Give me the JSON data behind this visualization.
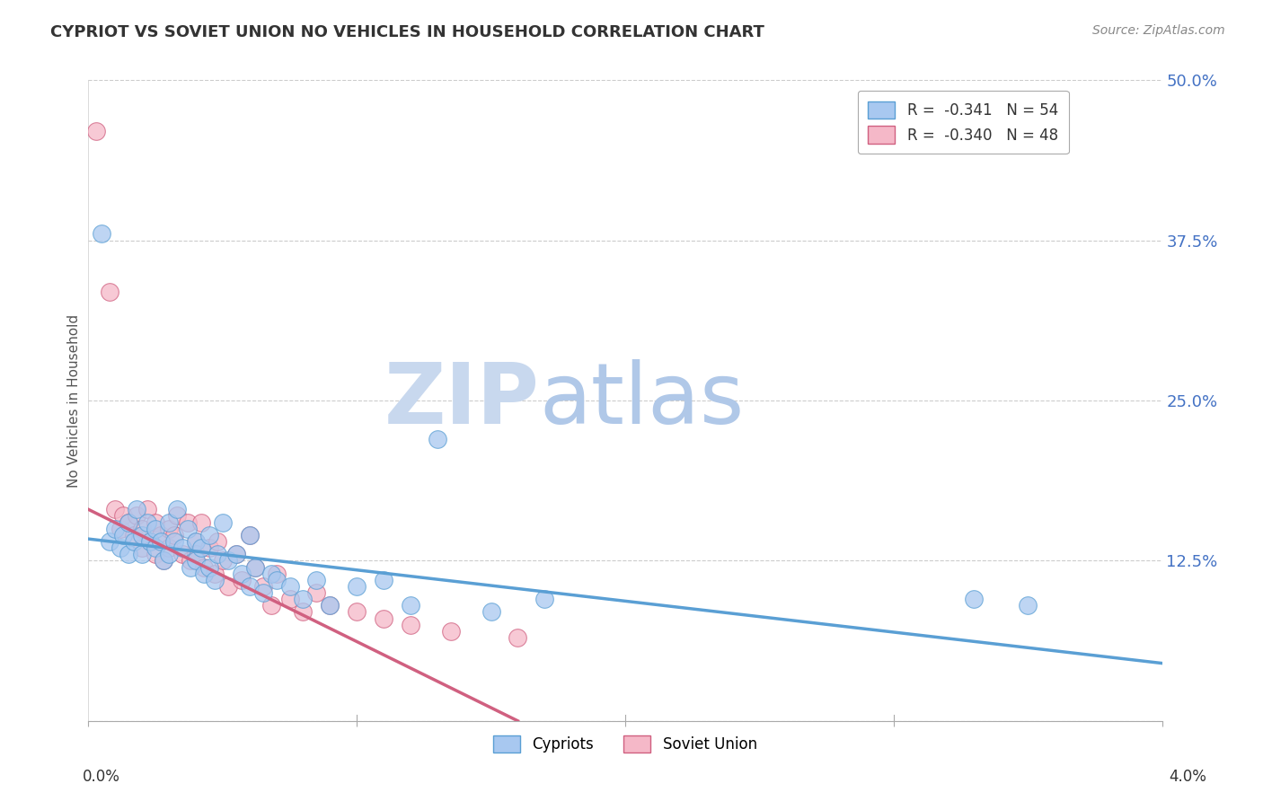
{
  "title": "CYPRIOT VS SOVIET UNION NO VEHICLES IN HOUSEHOLD CORRELATION CHART",
  "source": "Source: ZipAtlas.com",
  "ylabel": "No Vehicles in Household",
  "xmin": 0.0,
  "xmax": 4.0,
  "ymin": 0.0,
  "ymax": 50.0,
  "yticks": [
    0.0,
    12.5,
    25.0,
    37.5,
    50.0
  ],
  "ytick_labels": [
    "",
    "12.5%",
    "25.0%",
    "37.5%",
    "50.0%"
  ],
  "xtick_labels": [
    "0.0%",
    "",
    "",
    "",
    "4.0%"
  ],
  "legend_top": [
    {
      "label": "R =  -0.341   N = 54",
      "color": "#a8c8f0",
      "edge": "#5a9fd4"
    },
    {
      "label": "R =  -0.340   N = 48",
      "color": "#f5b8c8",
      "edge": "#d06080"
    }
  ],
  "legend_bottom": [
    "Cypriots",
    "Soviet Union"
  ],
  "cypriot_color": "#a8c8f0",
  "soviet_color": "#f5b8c8",
  "cypriot_edge": "#5a9fd4",
  "soviet_edge": "#d06080",
  "trend_cypriot": "#5a9fd4",
  "trend_soviet": "#d06080",
  "watermark_zip": "ZIP",
  "watermark_atlas": "atlas",
  "cypriot_x": [
    0.05,
    0.08,
    0.1,
    0.12,
    0.13,
    0.15,
    0.15,
    0.17,
    0.18,
    0.2,
    0.2,
    0.22,
    0.23,
    0.25,
    0.25,
    0.27,
    0.28,
    0.3,
    0.3,
    0.32,
    0.33,
    0.35,
    0.37,
    0.38,
    0.4,
    0.4,
    0.42,
    0.43,
    0.45,
    0.45,
    0.47,
    0.48,
    0.5,
    0.52,
    0.55,
    0.57,
    0.6,
    0.6,
    0.62,
    0.65,
    0.68,
    0.7,
    0.75,
    0.8,
    0.85,
    0.9,
    1.0,
    1.1,
    1.2,
    1.3,
    1.5,
    1.7,
    3.3,
    3.5
  ],
  "cypriot_y": [
    38.0,
    14.0,
    15.0,
    13.5,
    14.5,
    15.5,
    13.0,
    14.0,
    16.5,
    14.5,
    13.0,
    15.5,
    14.0,
    13.5,
    15.0,
    14.0,
    12.5,
    13.0,
    15.5,
    14.0,
    16.5,
    13.5,
    15.0,
    12.0,
    14.0,
    12.5,
    13.5,
    11.5,
    14.5,
    12.0,
    11.0,
    13.0,
    15.5,
    12.5,
    13.0,
    11.5,
    14.5,
    10.5,
    12.0,
    10.0,
    11.5,
    11.0,
    10.5,
    9.5,
    11.0,
    9.0,
    10.5,
    11.0,
    9.0,
    22.0,
    8.5,
    9.5,
    9.5,
    9.0
  ],
  "soviet_x": [
    0.03,
    0.08,
    0.1,
    0.12,
    0.13,
    0.15,
    0.17,
    0.18,
    0.2,
    0.2,
    0.22,
    0.23,
    0.25,
    0.25,
    0.27,
    0.28,
    0.3,
    0.3,
    0.32,
    0.33,
    0.35,
    0.37,
    0.38,
    0.4,
    0.4,
    0.42,
    0.43,
    0.45,
    0.47,
    0.48,
    0.5,
    0.52,
    0.55,
    0.57,
    0.6,
    0.62,
    0.65,
    0.68,
    0.7,
    0.75,
    0.8,
    0.85,
    0.9,
    1.0,
    1.1,
    1.2,
    1.35,
    1.6
  ],
  "soviet_y": [
    46.0,
    33.5,
    16.5,
    15.0,
    16.0,
    15.5,
    14.5,
    16.0,
    15.0,
    13.5,
    16.5,
    14.0,
    15.5,
    13.0,
    14.5,
    12.5,
    15.0,
    13.5,
    14.5,
    16.0,
    13.0,
    15.5,
    12.5,
    14.0,
    13.0,
    15.5,
    12.0,
    13.5,
    11.5,
    14.0,
    12.5,
    10.5,
    13.0,
    11.0,
    14.5,
    12.0,
    10.5,
    9.0,
    11.5,
    9.5,
    8.5,
    10.0,
    9.0,
    8.5,
    8.0,
    7.5,
    7.0,
    6.5
  ],
  "trend_cyp_x0": 0.0,
  "trend_cyp_y0": 14.2,
  "trend_cyp_x1": 4.0,
  "trend_cyp_y1": 4.5,
  "trend_sov_x0": 0.0,
  "trend_sov_y0": 16.5,
  "trend_sov_x1": 1.6,
  "trend_sov_y1": 0.0
}
